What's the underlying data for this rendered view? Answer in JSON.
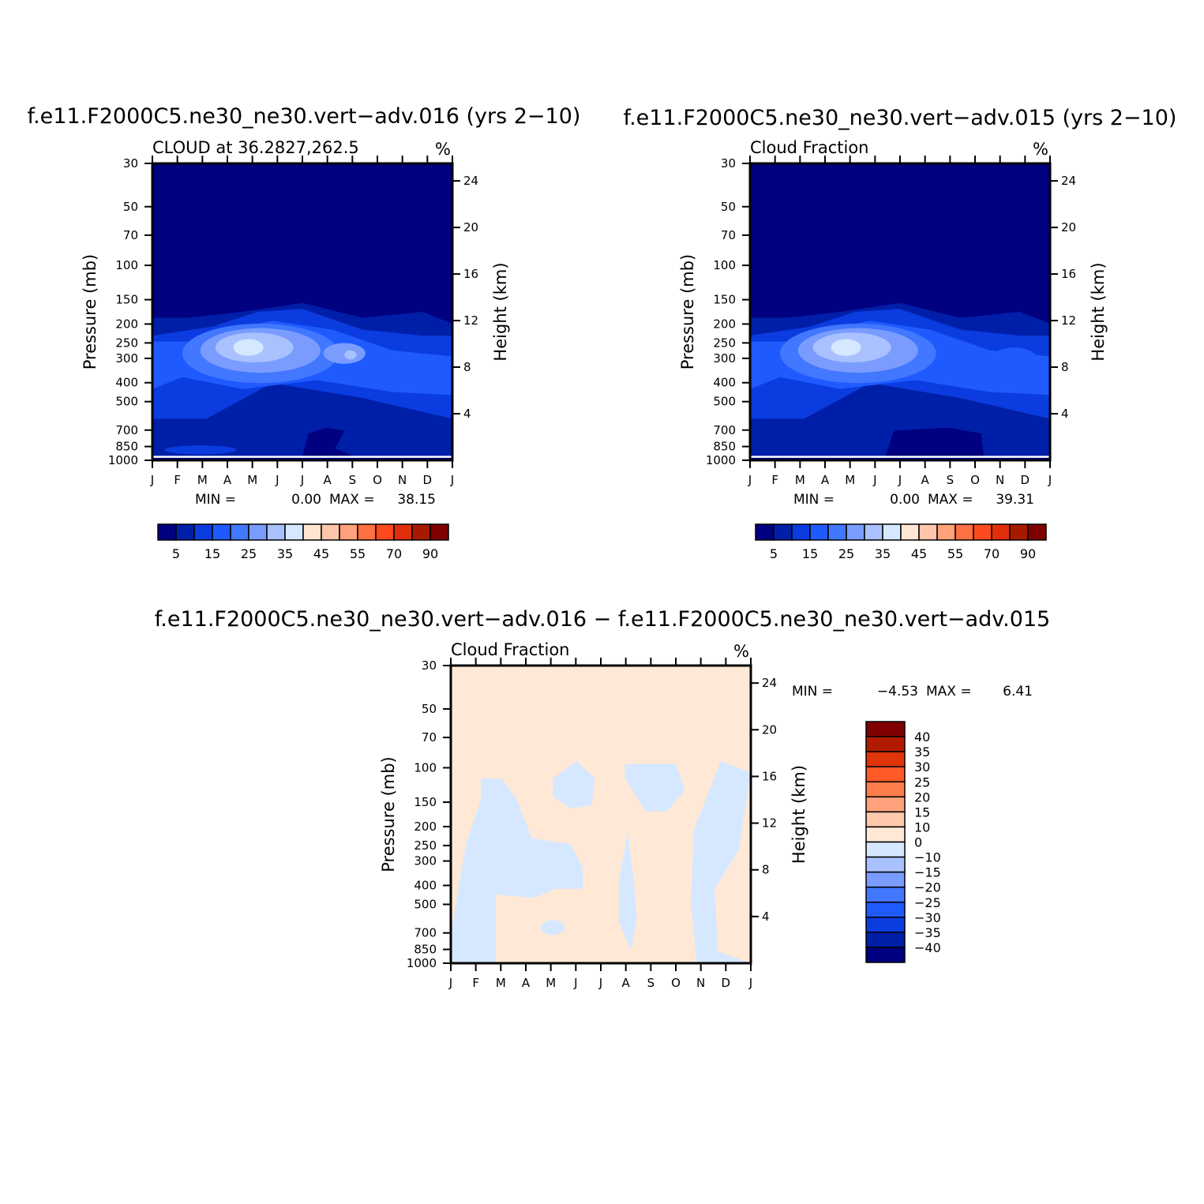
{
  "chart_data": [
    {
      "type": "heatmap",
      "title": "f.e11.F2000C5.ne30_ne30.vert−adv.016 (yrs 2−10)",
      "left_subtitle": "CLOUD at 36.2827,262.5",
      "right_subtitle": "%",
      "ylabel": "Pressure (mb)",
      "ylabel_right": "Height (km)",
      "x": [
        "J",
        "F",
        "M",
        "A",
        "M",
        "J",
        "J",
        "A",
        "S",
        "O",
        "N",
        "D",
        "J"
      ],
      "y_ticks": [
        30,
        50,
        70,
        100,
        150,
        200,
        250,
        300,
        400,
        500,
        700,
        850,
        1000
      ],
      "y_right_ticks": [
        24,
        20,
        16,
        12,
        8,
        4
      ],
      "min_label": "MIN =",
      "min_value": "0.00",
      "max_label": "MAX =",
      "max_value": "38.15",
      "colorbar": {
        "tick_labels": [
          "5",
          "15",
          "25",
          "35",
          "45",
          "55",
          "70",
          "90"
        ],
        "colors": [
          "#000080",
          "#001fa8",
          "#0a3ce0",
          "#1f5aff",
          "#4277ff",
          "#7b9cff",
          "#a9c2ff",
          "#d6e8ff",
          "#ffe7d3",
          "#ffc7a9",
          "#ffa27b",
          "#ff7042",
          "#ff4a1f",
          "#e02f0a",
          "#a81a00",
          "#800000"
        ]
      }
    },
    {
      "type": "heatmap",
      "title": "f.e11.F2000C5.ne30_ne30.vert−adv.015 (yrs 2−10)",
      "left_subtitle": "Cloud Fraction",
      "right_subtitle": "%",
      "ylabel": "Pressure (mb)",
      "ylabel_right": "Height (km)",
      "x": [
        "J",
        "F",
        "M",
        "A",
        "M",
        "J",
        "J",
        "A",
        "S",
        "O",
        "N",
        "D",
        "J"
      ],
      "y_ticks": [
        30,
        50,
        70,
        100,
        150,
        200,
        250,
        300,
        400,
        500,
        700,
        850,
        1000
      ],
      "y_right_ticks": [
        24,
        20,
        16,
        12,
        8,
        4
      ],
      "min_label": "MIN =",
      "min_value": "0.00",
      "max_label": "MAX =",
      "max_value": "39.31",
      "colorbar": {
        "tick_labels": [
          "5",
          "15",
          "25",
          "35",
          "45",
          "55",
          "70",
          "90"
        ],
        "colors": [
          "#000080",
          "#001fa8",
          "#0a3ce0",
          "#1f5aff",
          "#4277ff",
          "#7b9cff",
          "#a9c2ff",
          "#d6e8ff",
          "#ffe7d3",
          "#ffc7a9",
          "#ffa27b",
          "#ff7042",
          "#ff4a1f",
          "#e02f0a",
          "#a81a00",
          "#800000"
        ]
      }
    },
    {
      "type": "heatmap",
      "title": "f.e11.F2000C5.ne30_ne30.vert−adv.016 − f.e11.F2000C5.ne30_ne30.vert−adv.015",
      "left_subtitle": "Cloud Fraction",
      "right_subtitle": "%",
      "ylabel": "Pressure (mb)",
      "ylabel_right": "Height (km)",
      "x": [
        "J",
        "F",
        "M",
        "A",
        "M",
        "J",
        "J",
        "A",
        "S",
        "O",
        "N",
        "D",
        "J"
      ],
      "y_ticks": [
        30,
        50,
        70,
        100,
        150,
        200,
        250,
        300,
        400,
        500,
        700,
        850,
        1000
      ],
      "y_right_ticks": [
        24,
        20,
        16,
        12,
        8,
        4
      ],
      "min_label": "MIN =",
      "min_value": "−4.53",
      "max_label": "MAX =",
      "max_value": "6.41",
      "colorbar": {
        "tick_labels": [
          "40",
          "35",
          "30",
          "25",
          "20",
          "15",
          "10",
          "0",
          "−10",
          "−15",
          "−20",
          "−25",
          "−30",
          "−35",
          "−40"
        ],
        "colors": [
          "#800000",
          "#b31b00",
          "#e0340a",
          "#ff5a28",
          "#ff7d4a",
          "#ffa27b",
          "#ffc9ad",
          "#ffe9d6",
          "#d6e8ff",
          "#a9c2ff",
          "#7b9cff",
          "#4277ff",
          "#1f5aff",
          "#0a3ce0",
          "#001fa8",
          "#000080"
        ]
      }
    }
  ]
}
